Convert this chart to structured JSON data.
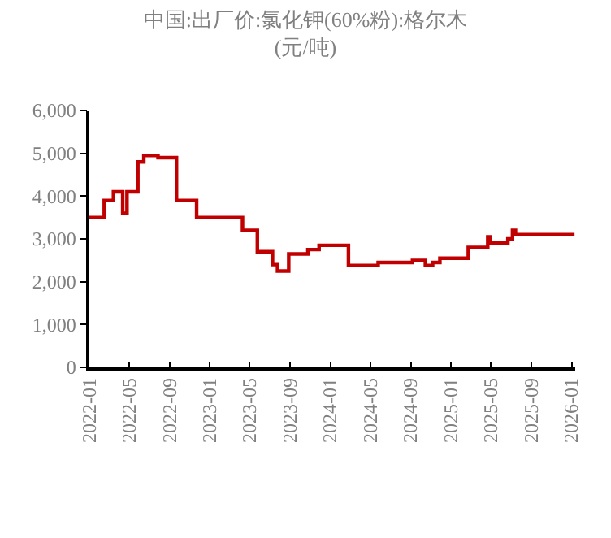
{
  "chart_data": {
    "type": "step",
    "title": "中国:出厂价:氯化钾(60%粉):格尔木",
    "subtitle": "(元/吨)",
    "x": [
      "2022-01-01",
      "2022-02-15",
      "2022-03-15",
      "2022-04-12",
      "2022-04-25",
      "2022-05-28",
      "2022-06-15",
      "2022-07-28",
      "2022-09-22",
      "2022-11-22",
      "2023-04-10",
      "2023-05-25",
      "2023-07-10",
      "2023-07-25",
      "2023-08-28",
      "2023-10-25",
      "2023-11-28",
      "2024-02-25",
      "2024-05-25",
      "2024-09-06",
      "2024-10-15",
      "2024-11-06",
      "2024-11-28",
      "2025-02-22",
      "2025-04-22",
      "2025-04-28",
      "2025-06-22",
      "2025-07-06",
      "2025-07-15",
      "2026-01-10"
    ],
    "series": [
      {
        "color": "#c00000",
        "values": [
          3500,
          3900,
          4100,
          3600,
          4100,
          4800,
          4950,
          4900,
          3900,
          3500,
          3200,
          2700,
          2400,
          2250,
          2650,
          2750,
          2850,
          2380,
          2450,
          2500,
          2380,
          2450,
          2550,
          2800,
          3050,
          2900,
          3000,
          3200,
          3100,
          3100
        ]
      }
    ],
    "xlim": [
      "2022-01-01",
      "2026-01-12"
    ],
    "xticks": [
      {
        "value": "2022-01-01",
        "label": "2022-01"
      },
      {
        "value": "2022-05-01",
        "label": "2022-05"
      },
      {
        "value": "2022-09-01",
        "label": "2022-09"
      },
      {
        "value": "2023-01-01",
        "label": "2023-01"
      },
      {
        "value": "2023-05-01",
        "label": "2023-05"
      },
      {
        "value": "2023-09-01",
        "label": "2023-09"
      },
      {
        "value": "2024-01-01",
        "label": "2024-01"
      },
      {
        "value": "2024-05-01",
        "label": "2024-05"
      },
      {
        "value": "2024-09-01",
        "label": "2024-09"
      },
      {
        "value": "2025-01-01",
        "label": "2025-01"
      },
      {
        "value": "2025-05-01",
        "label": "2025-05"
      },
      {
        "value": "2025-09-01",
        "label": "2025-09"
      },
      {
        "value": "2026-01-01",
        "label": "2026-01"
      }
    ],
    "ylim": [
      0,
      6000
    ],
    "yticks": [
      0,
      {
        "value": 1000,
        "label": "1,000"
      },
      {
        "value": 2000,
        "label": "2,000"
      },
      {
        "value": 3000,
        "label": "3,000"
      },
      {
        "value": 4000,
        "label": "4,000"
      },
      {
        "value": 5000,
        "label": "5,000"
      },
      {
        "value": 6000,
        "label": "6,000"
      }
    ],
    "line_style": "solid"
  }
}
